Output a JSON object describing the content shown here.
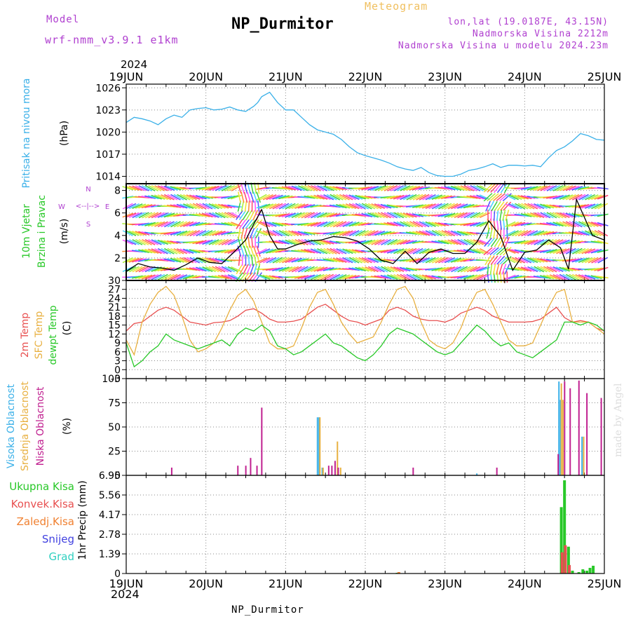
{
  "header": {
    "model_label": "Model",
    "model_name": "wrf-nmm_v3.9.1 e1km",
    "station": "NP_Durmitor",
    "meteogram": "Meteogram",
    "lonlat": "lon,lat (19.0187E, 43.15N)",
    "elevation": "Nadmorska Visina 2212m",
    "model_elevation": "Nadmorska Visina u modelu 2024.23m",
    "year": "2024",
    "footer_station": "NP_Durmitor",
    "watermark": "made by Angel"
  },
  "colors": {
    "pressure": "#3ab0e8",
    "temp2m": "#e85050",
    "sfc": "#e8b040",
    "dew": "#28c828",
    "high": "#3ab0e8",
    "mid": "#e8b040",
    "low": "#c02090",
    "rain_total": "#28c828",
    "rain_conv": "#e85050",
    "freezing": "#f08030",
    "snow": "#4040e0",
    "hail": "#30d0c0",
    "title_purple": "#b040d0"
  },
  "chart_data": [
    {
      "type": "line",
      "id": "pressure",
      "ylabel_lines": [
        "Pritisak na nivou mora",
        "(hPa)"
      ],
      "ylim": [
        1013,
        1026.5
      ],
      "yticks": [
        1014,
        1017,
        1020,
        1023,
        1026
      ],
      "xlim_days": [
        0,
        6
      ],
      "xticks": [
        "19JUN",
        "20JUN",
        "21JUN",
        "22JUN",
        "23JUN",
        "24JUN",
        "25JUN"
      ],
      "grid": true,
      "series": [
        {
          "color_key": "pressure",
          "x": [
            0,
            0.1,
            0.2,
            0.3,
            0.4,
            0.5,
            0.6,
            0.7,
            0.8,
            0.9,
            1.0,
            1.1,
            1.2,
            1.3,
            1.4,
            1.5,
            1.6,
            1.65,
            1.7,
            1.8,
            1.9,
            2.0,
            2.1,
            2.2,
            2.3,
            2.4,
            2.5,
            2.6,
            2.7,
            2.8,
            2.9,
            3.0,
            3.1,
            3.2,
            3.3,
            3.4,
            3.5,
            3.6,
            3.7,
            3.8,
            3.9,
            4.0,
            4.1,
            4.2,
            4.3,
            4.4,
            4.5,
            4.6,
            4.7,
            4.8,
            4.9,
            5.0,
            5.1,
            5.2,
            5.3,
            5.4,
            5.5,
            5.6,
            5.7,
            5.8,
            5.9,
            6.0
          ],
          "y": [
            1021.3,
            1022.0,
            1021.8,
            1021.5,
            1021.0,
            1021.8,
            1022.3,
            1022.0,
            1023.0,
            1023.2,
            1023.3,
            1023.0,
            1023.1,
            1023.4,
            1023.0,
            1022.8,
            1023.5,
            1024.0,
            1024.8,
            1025.4,
            1024.0,
            1023.0,
            1023.0,
            1022.0,
            1021.0,
            1020.3,
            1020.0,
            1019.7,
            1019.0,
            1018.0,
            1017.2,
            1016.8,
            1016.5,
            1016.2,
            1015.8,
            1015.3,
            1015.0,
            1014.8,
            1015.2,
            1014.5,
            1014.1,
            1014.0,
            1014.0,
            1014.3,
            1014.8,
            1015.0,
            1015.3,
            1015.7,
            1015.2,
            1015.5,
            1015.5,
            1015.4,
            1015.5,
            1015.3,
            1016.5,
            1017.5,
            1018.0,
            1018.8,
            1019.8,
            1019.5,
            1019.0,
            1018.9
          ]
        }
      ]
    },
    {
      "type": "line",
      "id": "wind",
      "ylabel_lines": [
        "10m Vjetar",
        "Brzina i Pravac",
        "(m/s)"
      ],
      "legend_glyphs": [
        "N",
        "<--|-->",
        "W",
        "E",
        "S"
      ],
      "ylim": [
        0,
        8.6
      ],
      "yticks": [
        2,
        4,
        6,
        8
      ],
      "xlim_days": [
        0,
        6
      ],
      "grid": true,
      "series": [
        {
          "name": "wind speed",
          "x": [
            0,
            0.15,
            0.3,
            0.45,
            0.6,
            0.75,
            0.9,
            1.05,
            1.2,
            1.35,
            1.5,
            1.6,
            1.7,
            1.8,
            1.9,
            2.0,
            2.15,
            2.3,
            2.45,
            2.6,
            2.75,
            2.9,
            3.05,
            3.2,
            3.35,
            3.5,
            3.65,
            3.8,
            3.95,
            4.1,
            4.25,
            4.4,
            4.55,
            4.7,
            4.85,
            5.0,
            5.15,
            5.3,
            5.45,
            5.55,
            5.65,
            5.75,
            5.85,
            6.0
          ],
          "y": [
            0.8,
            1.5,
            1.2,
            1.1,
            0.9,
            1.4,
            2.0,
            1.6,
            1.5,
            2.5,
            3.6,
            5.0,
            6.3,
            4.0,
            2.8,
            2.8,
            3.2,
            3.5,
            3.6,
            3.9,
            3.8,
            3.5,
            2.8,
            1.8,
            1.5,
            2.6,
            1.5,
            2.5,
            2.8,
            2.4,
            2.4,
            3.4,
            5.3,
            3.9,
            0.9,
            2.5,
            2.7,
            3.6,
            2.9,
            1.0,
            7.2,
            5.6,
            4.0,
            3.6
          ]
        }
      ],
      "arrow_rows_ms": [
        0.3,
        1.0,
        1.8,
        2.6,
        3.4,
        4.2,
        5.0,
        5.8,
        6.6,
        7.4,
        8.2
      ]
    },
    {
      "type": "line",
      "id": "temperature",
      "ylabel_lines": [
        "2m Temp",
        "SFC Temp",
        "dewpt Temp",
        "(C)"
      ],
      "ylim": [
        -3,
        30
      ],
      "yticks": [
        -3,
        0,
        3,
        6,
        9,
        12,
        15,
        18,
        21,
        24,
        27,
        30
      ],
      "xlim_days": [
        0,
        6
      ],
      "grid": true,
      "series": [
        {
          "name": "2m Temp",
          "color_key": "temp2m",
          "x": [
            0,
            0.1,
            0.2,
            0.3,
            0.4,
            0.5,
            0.6,
            0.7,
            0.8,
            0.9,
            1.0,
            1.1,
            1.2,
            1.3,
            1.4,
            1.5,
            1.6,
            1.7,
            1.8,
            1.9,
            2.0,
            2.1,
            2.2,
            2.3,
            2.4,
            2.5,
            2.6,
            2.7,
            2.8,
            2.9,
            3.0,
            3.1,
            3.2,
            3.3,
            3.4,
            3.5,
            3.6,
            3.7,
            3.8,
            3.9,
            4.0,
            4.1,
            4.2,
            4.3,
            4.4,
            4.5,
            4.6,
            4.7,
            4.8,
            4.9,
            5.0,
            5.1,
            5.2,
            5.3,
            5.4,
            5.5,
            5.6,
            5.7,
            5.8,
            5.9,
            6.0
          ],
          "y": [
            13,
            15.5,
            16,
            18,
            20,
            21,
            20,
            18,
            16,
            15.5,
            15,
            15.8,
            16,
            16.5,
            18,
            20,
            20.5,
            19,
            17,
            16,
            16,
            16.3,
            17,
            19,
            21,
            22,
            20,
            18,
            16.5,
            16,
            15,
            16,
            17,
            20,
            21,
            20,
            18,
            17,
            16.5,
            16.5,
            16,
            17,
            19,
            20,
            21,
            20,
            18,
            17,
            16,
            16,
            16,
            16.2,
            17,
            19,
            21,
            17.5,
            16,
            16.5,
            16,
            14,
            13
          ]
        },
        {
          "name": "SFC Temp",
          "color_key": "sfc",
          "x": [
            0,
            0.1,
            0.2,
            0.3,
            0.4,
            0.5,
            0.6,
            0.7,
            0.8,
            0.9,
            1.0,
            1.1,
            1.2,
            1.3,
            1.4,
            1.5,
            1.6,
            1.7,
            1.8,
            1.9,
            2.0,
            2.1,
            2.2,
            2.3,
            2.4,
            2.5,
            2.6,
            2.7,
            2.8,
            2.9,
            3.0,
            3.1,
            3.2,
            3.3,
            3.4,
            3.5,
            3.6,
            3.7,
            3.8,
            3.9,
            4.0,
            4.1,
            4.2,
            4.3,
            4.4,
            4.5,
            4.6,
            4.7,
            4.8,
            4.9,
            5.0,
            5.1,
            5.2,
            5.3,
            5.4,
            5.5,
            5.6,
            5.7,
            5.8,
            5.9,
            6.0
          ],
          "y": [
            10,
            5,
            16,
            22,
            26,
            28,
            25,
            18,
            10,
            6,
            7,
            9,
            14,
            20,
            25,
            27,
            23,
            16,
            9,
            7,
            7,
            8,
            14,
            21,
            26,
            27,
            22,
            16,
            12,
            9,
            10,
            11,
            16,
            22,
            27,
            28,
            24,
            16,
            10,
            8,
            7,
            9,
            14,
            21,
            26,
            27,
            22,
            16,
            10,
            8,
            8,
            9,
            15,
            21,
            26,
            27,
            16,
            16,
            16,
            14,
            12
          ]
        },
        {
          "name": "dewpt Temp",
          "color_key": "dew",
          "x": [
            0,
            0.1,
            0.2,
            0.3,
            0.4,
            0.5,
            0.6,
            0.7,
            0.8,
            0.9,
            1.0,
            1.1,
            1.2,
            1.3,
            1.4,
            1.5,
            1.6,
            1.7,
            1.8,
            1.9,
            2.0,
            2.1,
            2.2,
            2.3,
            2.4,
            2.5,
            2.6,
            2.7,
            2.8,
            2.9,
            3.0,
            3.1,
            3.2,
            3.3,
            3.4,
            3.5,
            3.6,
            3.7,
            3.8,
            3.9,
            4.0,
            4.1,
            4.2,
            4.3,
            4.4,
            4.5,
            4.6,
            4.7,
            4.8,
            4.9,
            5.0,
            5.1,
            5.2,
            5.3,
            5.4,
            5.5,
            5.6,
            5.7,
            5.8,
            5.9,
            6.0
          ],
          "y": [
            9,
            1,
            3,
            6,
            8,
            12,
            10,
            9,
            8,
            7,
            8,
            9,
            10,
            8,
            12,
            14,
            13,
            15,
            13,
            8,
            7,
            5,
            6,
            8,
            10,
            12,
            9,
            8,
            6,
            4,
            3,
            5,
            8,
            12,
            14,
            13,
            12,
            10,
            8,
            6,
            5,
            6,
            9,
            12,
            15,
            13,
            10,
            8,
            9,
            6,
            5,
            4,
            6,
            8,
            10,
            16,
            16,
            15,
            16,
            15,
            13
          ]
        }
      ]
    },
    {
      "type": "bar",
      "id": "clouds",
      "ylabel_lines": [
        "Visoka Oblacnost",
        "Srednja Oblacnost",
        "Niska Oblacnost",
        "(%)"
      ],
      "ylim": [
        0,
        100
      ],
      "yticks": [
        0,
        25,
        50,
        75,
        100
      ],
      "xlim_days": [
        0,
        6
      ],
      "grid": true,
      "series": [
        {
          "name": "Visoka Oblacnost",
          "color_key": "high",
          "x": [
            2.4,
            2.42,
            2.46,
            4.4,
            5.43,
            5.45,
            5.72
          ],
          "values": [
            60,
            60,
            8,
            2,
            97,
            78,
            40
          ]
        },
        {
          "name": "Srednja Oblacnost",
          "color_key": "mid",
          "x": [
            2.42,
            2.46,
            2.64,
            2.68,
            5.45,
            5.47,
            5.73
          ],
          "values": [
            60,
            8,
            35,
            8,
            95,
            78,
            40
          ]
        },
        {
          "name": "Niska Oblacnost",
          "color_key": "low",
          "x": [
            0.55,
            1.38,
            1.48,
            1.54,
            1.62,
            1.68,
            2.52,
            2.56,
            2.6,
            2.64,
            3.58,
            4.63,
            5.4,
            5.48,
            5.55,
            5.66,
            5.76,
            5.94
          ],
          "values": [
            8,
            10,
            10,
            18,
            10,
            70,
            10,
            10,
            15,
            8,
            8,
            8,
            22,
            97,
            90,
            98,
            85,
            80
          ]
        }
      ]
    },
    {
      "type": "bar",
      "id": "precip",
      "ylabel_lines": [
        "1hr Precip (mm)"
      ],
      "legend": [
        "Ukupna Kisa",
        "Konvek.Kisa",
        "Zaledj.Kisa",
        "Snijeg",
        "Grad"
      ],
      "ylim": [
        0,
        6.95
      ],
      "yticks": [
        0,
        1.39,
        2.78,
        4.17,
        5.56,
        6.95
      ],
      "xlim_days": [
        0,
        6
      ],
      "grid": true,
      "series": [
        {
          "name": "Ukupna Kisa",
          "color_key": "rain_total",
          "x": [
            3.4,
            5.46,
            5.5,
            5.55,
            5.6,
            5.68,
            5.73,
            5.78,
            5.82,
            5.86
          ],
          "values": [
            0.05,
            4.7,
            6.6,
            1.9,
            0.2,
            0.1,
            0.3,
            0.2,
            0.4,
            0.55
          ]
        },
        {
          "name": "Konvek.Kisa",
          "color_key": "rain_conv",
          "x": [
            5.46,
            5.5,
            5.55
          ],
          "values": [
            1.5,
            2.0,
            0.6
          ]
        },
        {
          "name": "Zaledj.Kisa",
          "color_key": "freezing",
          "x": [
            3.4
          ],
          "values": [
            0.1
          ]
        }
      ]
    }
  ]
}
